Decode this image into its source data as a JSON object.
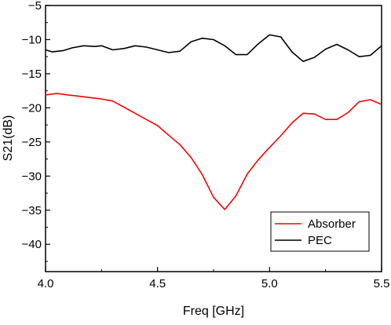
{
  "chart_data": {
    "type": "line",
    "xlabel": "Freq [GHz]",
    "ylabel": "S21(dB)",
    "xlim": [
      4.0,
      5.5
    ],
    "ylim": [
      -44,
      -5
    ],
    "xticks": [
      4.0,
      4.5,
      5.0,
      5.5
    ],
    "xtick_labels": [
      "4.0",
      "4.5",
      "5.0",
      "5.5"
    ],
    "yticks": [
      -5,
      -10,
      -15,
      -20,
      -25,
      -30,
      -35,
      -40
    ],
    "ytick_labels": [
      "−5",
      "−10",
      "−15",
      "−20",
      "−25",
      "−30",
      "−35",
      "−40"
    ],
    "grid": false,
    "legend_position": "bottom-right",
    "series": [
      {
        "name": "Absorber",
        "color": "#ff0000",
        "x": [
          4.0,
          4.05,
          4.1,
          4.15,
          4.2,
          4.25,
          4.3,
          4.35,
          4.4,
          4.45,
          4.5,
          4.55,
          4.6,
          4.65,
          4.7,
          4.75,
          4.8,
          4.85,
          4.9,
          4.95,
          5.0,
          5.05,
          5.1,
          5.15,
          5.2,
          5.25,
          5.3,
          5.35,
          5.4,
          5.45,
          5.5
        ],
        "y": [
          -18.1,
          -17.9,
          -18.1,
          -18.3,
          -18.5,
          -18.7,
          -19.0,
          -19.9,
          -20.8,
          -21.7,
          -22.6,
          -24.0,
          -25.4,
          -27.3,
          -29.8,
          -33.1,
          -34.9,
          -32.9,
          -29.7,
          -27.6,
          -25.8,
          -24.1,
          -22.2,
          -20.8,
          -20.9,
          -21.7,
          -21.7,
          -20.7,
          -19.1,
          -18.8,
          -19.5
        ]
      },
      {
        "name": "PEC",
        "color": "#000000",
        "x": [
          4.0,
          4.03,
          4.08,
          4.12,
          4.17,
          4.22,
          4.25,
          4.3,
          4.35,
          4.4,
          4.45,
          4.5,
          4.55,
          4.6,
          4.65,
          4.7,
          4.75,
          4.8,
          4.85,
          4.9,
          4.95,
          5.0,
          5.05,
          5.1,
          5.15,
          5.2,
          5.25,
          5.3,
          5.35,
          5.4,
          5.45,
          5.5
        ],
        "y": [
          -11.5,
          -11.8,
          -11.6,
          -11.2,
          -10.9,
          -11.0,
          -10.9,
          -11.5,
          -11.3,
          -10.9,
          -11.1,
          -11.5,
          -11.9,
          -11.7,
          -10.3,
          -9.8,
          -10.0,
          -10.9,
          -12.2,
          -12.2,
          -10.6,
          -9.3,
          -9.6,
          -11.8,
          -13.2,
          -12.6,
          -11.4,
          -10.7,
          -11.5,
          -12.5,
          -12.3,
          -10.9
        ]
      }
    ]
  }
}
